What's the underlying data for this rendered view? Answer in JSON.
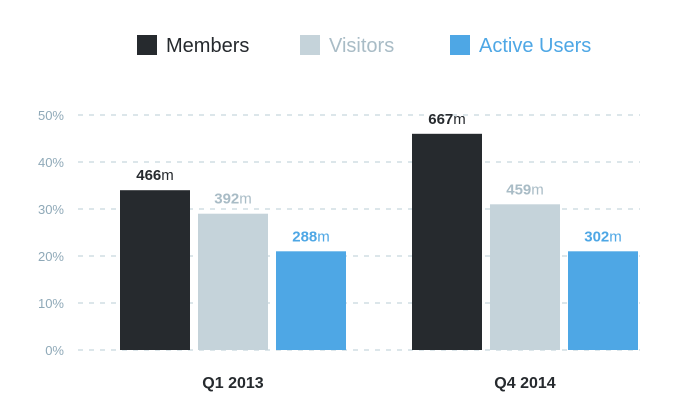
{
  "chart_data": {
    "type": "bar",
    "categories": [
      "Q1 2013",
      "Q4 2014"
    ],
    "series": [
      {
        "name": "Members",
        "color": "#262a2e",
        "values": [
          34,
          46
        ],
        "labels": [
          "466",
          "667"
        ]
      },
      {
        "name": "Visitors",
        "color": "#c5d3da",
        "values": [
          29,
          31
        ],
        "labels": [
          "392",
          "459"
        ]
      },
      {
        "name": "Active Users",
        "color": "#4ea7e5",
        "values": [
          21,
          21
        ],
        "labels": [
          "288",
          "302"
        ]
      }
    ],
    "label_unit": "m",
    "yticks": [
      "0%",
      "10%",
      "20%",
      "30%",
      "40%",
      "50%"
    ],
    "ylim": [
      0,
      50
    ],
    "grid": true,
    "legend_position": "top-center",
    "title": "",
    "xlabel": "",
    "ylabel": ""
  }
}
